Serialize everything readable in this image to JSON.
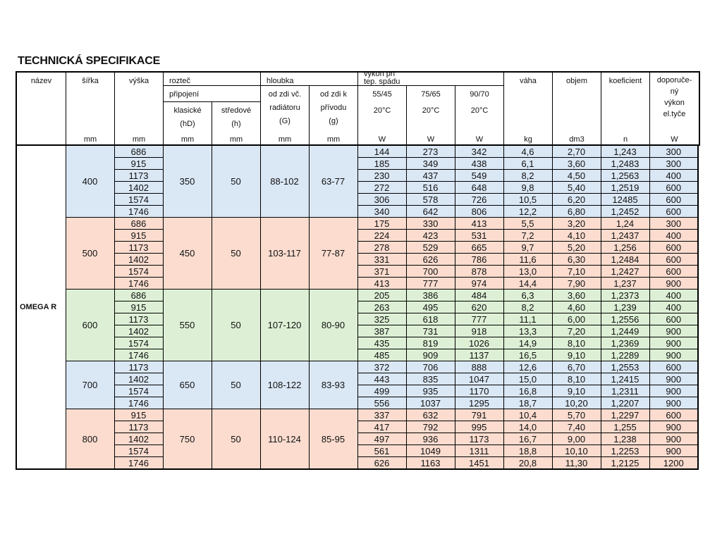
{
  "title": "TECHNICKÁ SPECIFIKACE",
  "colors": {
    "blue": "#dae7f5",
    "salmon": "#fbdccf",
    "green": "#ddf0d5",
    "border": "#000000"
  },
  "header": {
    "nazev": "název",
    "sirka": "šířka",
    "vyska": "výška",
    "roztec": "rozteč",
    "pripojeni": "připojení",
    "klasicke": [
      "klasické",
      "(hD)"
    ],
    "stredove": [
      "středové",
      "(h)"
    ],
    "hloubka": "hloubka",
    "od_zdi_radiator": [
      "od zdi  vč.",
      "radiátoru",
      "(G)"
    ],
    "od_zdi_privod": [
      "od zdi  k",
      "přívodu",
      "(g)"
    ],
    "vykon": [
      "výkon při",
      "tep. spádu"
    ],
    "t5545": [
      "55/45",
      "20°C"
    ],
    "t7565": [
      "75/65",
      "20°C"
    ],
    "t9070": [
      "90/70",
      "20°C"
    ],
    "vaha": "váha",
    "objem": "objem",
    "koeficient": "koeficient",
    "doporuceny": [
      "doporuče-",
      "ný",
      "výkon",
      "el.tyče"
    ],
    "units": [
      "mm",
      "mm",
      "mm",
      "mm",
      "mm",
      "mm",
      "W",
      "W",
      "W",
      "kg",
      "dm3",
      "n",
      "W"
    ]
  },
  "model": "OMEGA R",
  "groups": [
    {
      "color": "blue",
      "sirka": "400",
      "klasicke": "350",
      "stredove": "50",
      "G": "88-102",
      "g": "63-77",
      "rows": [
        [
          "686",
          "144",
          "273",
          "342",
          "4,6",
          "2,70",
          "1,243",
          "300"
        ],
        [
          "915",
          "185",
          "349",
          "438",
          "6,1",
          "3,60",
          "1,2483",
          "300"
        ],
        [
          "1173",
          "230",
          "437",
          "549",
          "8,2",
          "4,50",
          "1,2563",
          "400"
        ],
        [
          "1402",
          "272",
          "516",
          "648",
          "9,8",
          "5,40",
          "1,2519",
          "600"
        ],
        [
          "1574",
          "306",
          "578",
          "726",
          "10,5",
          "6,20",
          "12485",
          "600"
        ],
        [
          "1746",
          "340",
          "642",
          "806",
          "12,2",
          "6,80",
          "1,2452",
          "600"
        ]
      ]
    },
    {
      "color": "salmon",
      "sirka": "500",
      "klasicke": "450",
      "stredove": "50",
      "G": "103-117",
      "g": "77-87",
      "rows": [
        [
          "686",
          "175",
          "330",
          "413",
          "5,5",
          "3,20",
          "1,24",
          "300"
        ],
        [
          "915",
          "224",
          "423",
          "531",
          "7,2",
          "4,10",
          "1,2437",
          "400"
        ],
        [
          "1173",
          "278",
          "529",
          "665",
          "9,7",
          "5,20",
          "1,256",
          "600"
        ],
        [
          "1402",
          "331",
          "626",
          "786",
          "11,6",
          "6,30",
          "1,2484",
          "600"
        ],
        [
          "1574",
          "371",
          "700",
          "878",
          "13,0",
          "7,10",
          "1,2427",
          "600"
        ],
        [
          "1746",
          "413",
          "777",
          "974",
          "14,4",
          "7,90",
          "1,237",
          "900"
        ]
      ]
    },
    {
      "color": "green",
      "sirka": "600",
      "klasicke": "550",
      "stredove": "50",
      "G": "107-120",
      "g": "80-90",
      "rows": [
        [
          "686",
          "205",
          "386",
          "484",
          "6,3",
          "3,60",
          "1,2373",
          "400"
        ],
        [
          "915",
          "263",
          "495",
          "620",
          "8,2",
          "4,60",
          "1,239",
          "400"
        ],
        [
          "1173",
          "325",
          "618",
          "777",
          "11,1",
          "6,00",
          "1,2556",
          "600"
        ],
        [
          "1402",
          "387",
          "731",
          "918",
          "13,3",
          "7,20",
          "1,2449",
          "900"
        ],
        [
          "1574",
          "435",
          "819",
          "1026",
          "14,9",
          "8,10",
          "1,2369",
          "900"
        ],
        [
          "1746",
          "485",
          "909",
          "1137",
          "16,5",
          "9,10",
          "1,2289",
          "900"
        ]
      ]
    },
    {
      "color": "blue",
      "sirka": "700",
      "klasicke": "650",
      "stredove": "50",
      "G": "108-122",
      "g": "83-93",
      "rows": [
        [
          "1173",
          "372",
          "706",
          "888",
          "12,6",
          "6,70",
          "1,2553",
          "600"
        ],
        [
          "1402",
          "443",
          "835",
          "1047",
          "15,0",
          "8,10",
          "1,2415",
          "900"
        ],
        [
          "1574",
          "499",
          "935",
          "1170",
          "16,8",
          "9,10",
          "1,2311",
          "900"
        ],
        [
          "1746",
          "556",
          "1037",
          "1295",
          "18,7",
          "10,20",
          "1,2207",
          "900"
        ]
      ]
    },
    {
      "color": "salmon",
      "sirka": "800",
      "klasicke": "750",
      "stredove": "50",
      "G": "110-124",
      "g": "85-95",
      "rows": [
        [
          "915",
          "337",
          "632",
          "791",
          "10,4",
          "5,70",
          "1,2297",
          "600"
        ],
        [
          "1173",
          "417",
          "792",
          "995",
          "14,0",
          "7,40",
          "1,255",
          "900"
        ],
        [
          "1402",
          "497",
          "936",
          "1173",
          "16,7",
          "9,00",
          "1,238",
          "900"
        ],
        [
          "1574",
          "561",
          "1049",
          "1311",
          "18,8",
          "10,10",
          "1,2253",
          "900"
        ],
        [
          "1746",
          "626",
          "1163",
          "1451",
          "20,8",
          "11,30",
          "1,2125",
          "1200"
        ]
      ]
    }
  ]
}
